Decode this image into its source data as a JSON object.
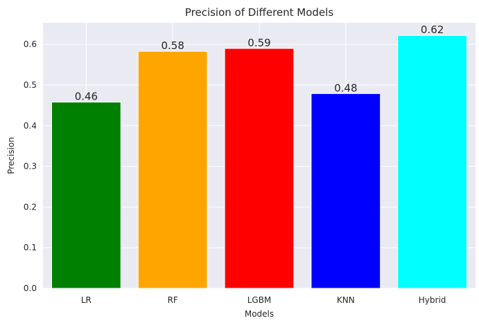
{
  "chart_data": {
    "type": "bar",
    "title": "Precision of Different Models",
    "xlabel": "Models",
    "ylabel": "Precision",
    "categories": [
      "LR",
      "RF",
      "LGBM",
      "KNN",
      "Hybrid"
    ],
    "values": [
      0.458,
      0.583,
      0.59,
      0.479,
      0.622
    ],
    "data_labels": [
      "0.46",
      "0.58",
      "0.59",
      "0.48",
      "0.62"
    ],
    "colors": [
      "#008000",
      "#FFA500",
      "#FF0000",
      "#0000FF",
      "#00FFFF"
    ],
    "ylim": [
      0,
      0.653
    ],
    "yticks": [
      0.0,
      0.1,
      0.2,
      0.3,
      0.4,
      0.5,
      0.6
    ],
    "ytick_labels": [
      "0.0",
      "0.1",
      "0.2",
      "0.3",
      "0.4",
      "0.5",
      "0.6"
    ],
    "grid": true,
    "background_color": "#EAEAF2",
    "grid_color": "#FFFFFF",
    "edge_color": "#FFFFFF"
  }
}
